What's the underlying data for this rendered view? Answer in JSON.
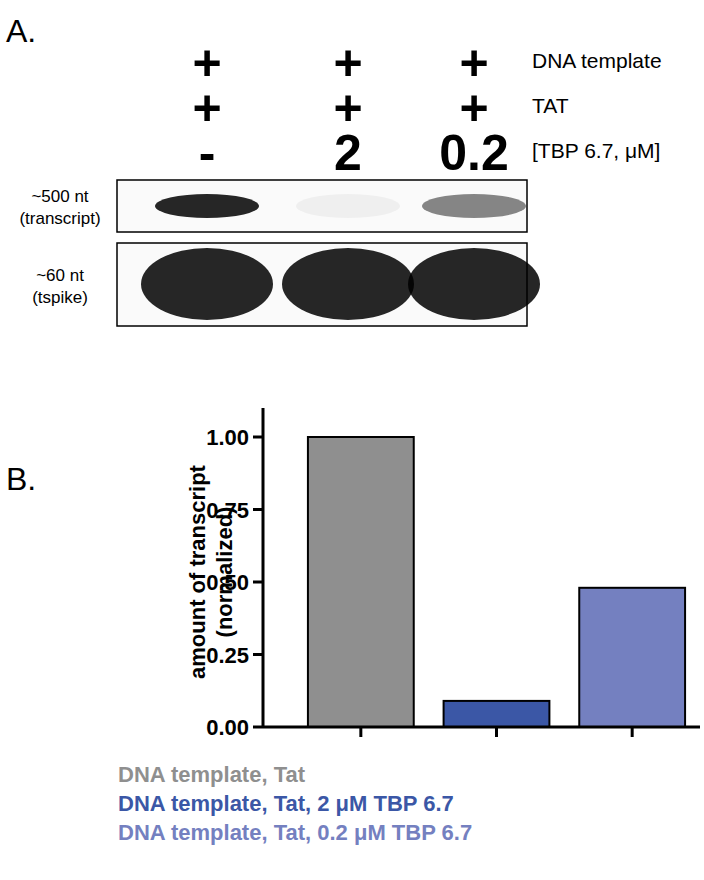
{
  "panel_a": {
    "label": "A.",
    "rows": [
      {
        "label": "DNA template",
        "values": [
          "+",
          "+",
          "+"
        ]
      },
      {
        "label": "TAT",
        "values": [
          "+",
          "+",
          "+"
        ]
      },
      {
        "label": "[TBP 6.7, μM]",
        "values": [
          "-",
          "2",
          "0.2"
        ]
      }
    ],
    "bands": [
      {
        "label": [
          "~500 nt",
          "(transcript)"
        ],
        "intensity": [
          1,
          0.05,
          0.55
        ]
      },
      {
        "label": [
          "~60 nt",
          "(tspike)"
        ],
        "intensity": [
          1,
          1,
          1
        ]
      }
    ]
  },
  "chart_data": {
    "type": "bar",
    "title": "B.",
    "ylabel": [
      "amount of transcript",
      "(normalized)"
    ],
    "categories": [
      "DNA template, Tat",
      "DNA template, Tat, 2 μM TBP 6.7",
      "DNA template, Tat, 0.2 μM TBP 6.7"
    ],
    "values": [
      1.0,
      0.09,
      0.48
    ],
    "colors": [
      "#8f8f8f",
      "#3b57a6",
      "#7480c0"
    ],
    "ylim": [
      0,
      1.1
    ],
    "yticks": [
      {
        "value": 0,
        "label": "0.00"
      },
      {
        "value": 0.25,
        "label": "0.25"
      },
      {
        "value": 0.5,
        "label": "0.50"
      },
      {
        "value": 0.75,
        "label": "0.75"
      },
      {
        "value": 1,
        "label": "1.00"
      }
    ],
    "grid": false
  }
}
